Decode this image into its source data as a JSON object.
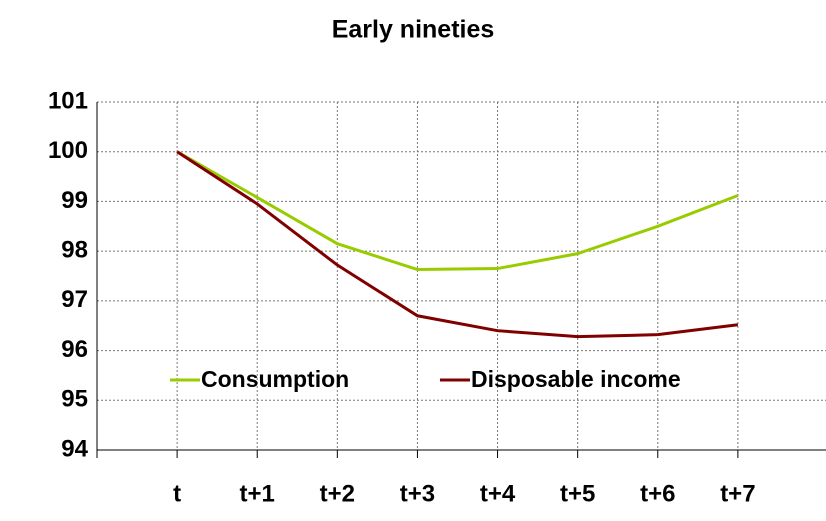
{
  "chart_data": {
    "type": "line",
    "title": "Early nineties",
    "categories": [
      "t",
      "t+1",
      "t+2",
      "t+3",
      "t+4",
      "t+5",
      "t+6",
      "t+7"
    ],
    "series": [
      {
        "name": "Consumption",
        "color": "#99cc00",
        "values": [
          100,
          99.08,
          98.15,
          97.63,
          97.65,
          97.95,
          98.5,
          99.12
        ]
      },
      {
        "name": "Disposable income",
        "color": "#800000",
        "values": [
          100,
          98.95,
          97.72,
          96.7,
          96.4,
          96.28,
          96.32,
          96.52
        ]
      }
    ],
    "ylim": [
      94,
      101
    ],
    "yticks": [
      94,
      95,
      96,
      97,
      98,
      99,
      100,
      101
    ],
    "grid": true
  }
}
